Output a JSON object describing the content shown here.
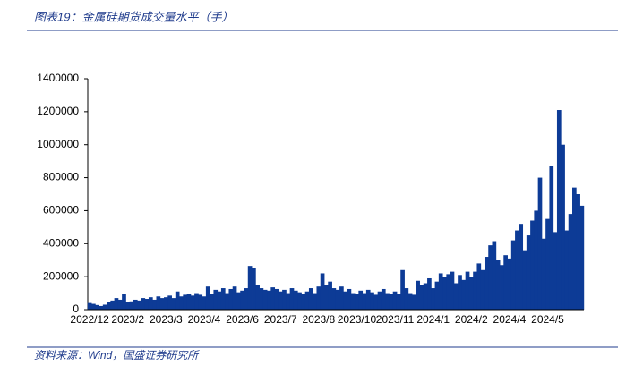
{
  "chart_data": {
    "type": "bar",
    "title": "图表19：金属硅期货成交量水平（手）",
    "source": "资料来源：Wind，国盛证券研究所",
    "color": "#0d3b96",
    "categories": [
      "2022/12",
      null,
      null,
      null,
      null,
      null,
      null,
      null,
      null,
      null,
      "2023/2",
      null,
      null,
      null,
      null,
      null,
      null,
      null,
      null,
      null,
      "2023/3",
      null,
      null,
      null,
      null,
      null,
      null,
      null,
      null,
      null,
      "2023/4",
      null,
      null,
      null,
      null,
      null,
      null,
      null,
      null,
      null,
      "2023/6",
      null,
      null,
      null,
      null,
      null,
      null,
      null,
      null,
      null,
      "2023/7",
      null,
      null,
      null,
      null,
      null,
      null,
      null,
      null,
      null,
      "2023/8",
      null,
      null,
      null,
      null,
      null,
      null,
      null,
      null,
      null,
      "2023/10",
      null,
      null,
      null,
      null,
      null,
      null,
      null,
      null,
      null,
      "2023/11",
      null,
      null,
      null,
      null,
      null,
      null,
      null,
      null,
      null,
      "2024/1",
      null,
      null,
      null,
      null,
      null,
      null,
      null,
      null,
      null,
      "2024/2",
      null,
      null,
      null,
      null,
      null,
      null,
      null,
      null,
      null,
      "2024/4",
      null,
      null,
      null,
      null,
      null,
      null,
      null,
      null,
      null,
      "2024/5",
      null,
      null,
      null,
      null,
      null,
      null,
      null,
      null,
      null
    ],
    "values": [
      40000,
      35000,
      28000,
      22000,
      30000,
      45000,
      55000,
      70000,
      60000,
      95000,
      45000,
      50000,
      60000,
      55000,
      70000,
      65000,
      75000,
      60000,
      80000,
      70000,
      75000,
      85000,
      70000,
      110000,
      80000,
      90000,
      95000,
      85000,
      100000,
      90000,
      80000,
      140000,
      95000,
      120000,
      110000,
      130000,
      100000,
      125000,
      140000,
      105000,
      115000,
      130000,
      265000,
      255000,
      150000,
      130000,
      120000,
      115000,
      135000,
      125000,
      110000,
      120000,
      100000,
      130000,
      115000,
      105000,
      95000,
      110000,
      130000,
      100000,
      140000,
      220000,
      150000,
      170000,
      130000,
      120000,
      140000,
      110000,
      125000,
      100000,
      95000,
      115000,
      100000,
      120000,
      105000,
      90000,
      110000,
      125000,
      100000,
      95000,
      110000,
      95000,
      240000,
      130000,
      100000,
      90000,
      175000,
      150000,
      160000,
      190000,
      130000,
      170000,
      220000,
      200000,
      215000,
      230000,
      160000,
      210000,
      180000,
      230000,
      200000,
      230000,
      280000,
      240000,
      320000,
      390000,
      415000,
      300000,
      270000,
      330000,
      310000,
      420000,
      480000,
      520000,
      360000,
      450000,
      540000,
      600000,
      800000,
      430000,
      550000,
      870000,
      470000,
      1210000,
      1000000,
      480000,
      580000,
      740000,
      700000,
      630000
    ],
    "ylim": [
      0,
      1400000
    ],
    "yticks": [
      0,
      200000,
      400000,
      600000,
      800000,
      1000000,
      1200000,
      1400000
    ],
    "grid": false
  }
}
